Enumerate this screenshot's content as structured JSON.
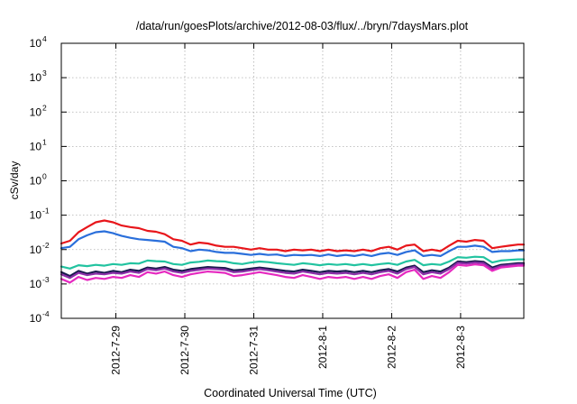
{
  "chart_data": {
    "type": "line",
    "title": "/data/run/goesPlots/archive/2012-08-03/flux/../bryn/7daysMars.plot",
    "xlabel": "Coordinated Universal Time (UTC)",
    "ylabel": "cSv/day",
    "xlim": [
      "2012-07-28T05:00",
      "2012-08-03T22:00"
    ],
    "ylim": [
      0.0001,
      10000
    ],
    "yscale": "log",
    "grid": true,
    "xticks": [
      {
        "label": "2012-7-29",
        "value": "2012-07-29T00:00"
      },
      {
        "label": "2012-7-30",
        "value": "2012-07-30T00:00"
      },
      {
        "label": "2012-7-31",
        "value": "2012-07-31T00:00"
      },
      {
        "label": "2012-8-1",
        "value": "2012-08-01T00:00"
      },
      {
        "label": "2012-8-2",
        "value": "2012-08-02T00:00"
      },
      {
        "label": "2012-8-3",
        "value": "2012-08-03T00:00"
      }
    ],
    "yticks": [
      {
        "value": 0.0001,
        "base": "10",
        "exp": "-4"
      },
      {
        "value": 0.001,
        "base": "10",
        "exp": "-3"
      },
      {
        "value": 0.01,
        "base": "10",
        "exp": "-2"
      },
      {
        "value": 0.1,
        "base": "10",
        "exp": "-1"
      },
      {
        "value": 1,
        "base": "10",
        "exp": "0"
      },
      {
        "value": 10,
        "base": "10",
        "exp": "1"
      },
      {
        "value": 100,
        "base": "10",
        "exp": "2"
      },
      {
        "value": 1000,
        "base": "10",
        "exp": "3"
      },
      {
        "value": 10000,
        "base": "10",
        "exp": "4"
      }
    ],
    "x": [
      "2012-07-28T05:00",
      "2012-07-28T08:00",
      "2012-07-28T11:00",
      "2012-07-28T14:00",
      "2012-07-28T17:00",
      "2012-07-28T20:00",
      "2012-07-28T23:00",
      "2012-07-29T02:00",
      "2012-07-29T05:00",
      "2012-07-29T08:00",
      "2012-07-29T11:00",
      "2012-07-29T14:00",
      "2012-07-29T17:00",
      "2012-07-29T20:00",
      "2012-07-29T23:00",
      "2012-07-30T02:00",
      "2012-07-30T05:00",
      "2012-07-30T08:00",
      "2012-07-30T11:00",
      "2012-07-30T14:00",
      "2012-07-30T17:00",
      "2012-07-30T20:00",
      "2012-07-30T23:00",
      "2012-07-31T02:00",
      "2012-07-31T05:00",
      "2012-07-31T08:00",
      "2012-07-31T11:00",
      "2012-07-31T14:00",
      "2012-07-31T17:00",
      "2012-07-31T20:00",
      "2012-07-31T23:00",
      "2012-08-01T02:00",
      "2012-08-01T05:00",
      "2012-08-01T08:00",
      "2012-08-01T11:00",
      "2012-08-01T14:00",
      "2012-08-01T17:00",
      "2012-08-01T20:00",
      "2012-08-01T23:00",
      "2012-08-02T02:00",
      "2012-08-02T05:00",
      "2012-08-02T08:00",
      "2012-08-02T11:00",
      "2012-08-02T14:00",
      "2012-08-02T17:00",
      "2012-08-02T20:00",
      "2012-08-02T23:00",
      "2012-08-03T02:00",
      "2012-08-03T05:00",
      "2012-08-03T08:00",
      "2012-08-03T11:00",
      "2012-08-03T14:00",
      "2012-08-03T17:00",
      "2012-08-03T20:00",
      "2012-08-03T22:00"
    ],
    "series": [
      {
        "color": "#e8161b",
        "values": [
          0.015,
          0.018,
          0.032,
          0.045,
          0.062,
          0.07,
          0.062,
          0.05,
          0.045,
          0.042,
          0.035,
          0.033,
          0.028,
          0.02,
          0.018,
          0.014,
          0.016,
          0.015,
          0.013,
          0.012,
          0.012,
          0.011,
          0.01,
          0.011,
          0.01,
          0.01,
          0.009,
          0.01,
          0.0095,
          0.01,
          0.009,
          0.01,
          0.009,
          0.0095,
          0.009,
          0.01,
          0.009,
          0.011,
          0.012,
          0.01,
          0.013,
          0.014,
          0.009,
          0.01,
          0.009,
          0.013,
          0.018,
          0.017,
          0.019,
          0.018,
          0.011,
          0.012,
          0.013,
          0.014,
          0.014
        ]
      },
      {
        "color": "#2a6fdb",
        "values": [
          0.011,
          0.012,
          0.02,
          0.026,
          0.032,
          0.034,
          0.03,
          0.025,
          0.022,
          0.02,
          0.019,
          0.018,
          0.017,
          0.012,
          0.011,
          0.009,
          0.01,
          0.0095,
          0.0085,
          0.008,
          0.008,
          0.0075,
          0.007,
          0.0075,
          0.007,
          0.0072,
          0.0065,
          0.007,
          0.0068,
          0.007,
          0.0065,
          0.0072,
          0.0065,
          0.007,
          0.0065,
          0.0072,
          0.0065,
          0.0075,
          0.008,
          0.007,
          0.0085,
          0.0095,
          0.0065,
          0.007,
          0.0065,
          0.009,
          0.012,
          0.012,
          0.013,
          0.012,
          0.0085,
          0.009,
          0.009,
          0.0095,
          0.0095
        ]
      },
      {
        "color": "#22c3a0",
        "values": [
          0.0032,
          0.0028,
          0.0035,
          0.0033,
          0.0036,
          0.0034,
          0.0038,
          0.0036,
          0.004,
          0.0039,
          0.0048,
          0.0046,
          0.0045,
          0.0038,
          0.0036,
          0.0042,
          0.0044,
          0.0048,
          0.0046,
          0.0045,
          0.004,
          0.0038,
          0.0042,
          0.0045,
          0.0043,
          0.004,
          0.0038,
          0.0036,
          0.004,
          0.0038,
          0.0035,
          0.0038,
          0.0036,
          0.0038,
          0.0035,
          0.0038,
          0.0035,
          0.0038,
          0.004,
          0.0036,
          0.0045,
          0.005,
          0.0035,
          0.0038,
          0.0036,
          0.0045,
          0.006,
          0.0058,
          0.0062,
          0.006,
          0.0042,
          0.0048,
          0.005,
          0.0052,
          0.0052
        ]
      },
      {
        "color": "#1a1a4e",
        "values": [
          0.0022,
          0.0017,
          0.0024,
          0.002,
          0.0023,
          0.0021,
          0.0024,
          0.0022,
          0.0026,
          0.0024,
          0.003,
          0.0028,
          0.0031,
          0.0026,
          0.0024,
          0.0027,
          0.0029,
          0.0031,
          0.003,
          0.0029,
          0.0025,
          0.0026,
          0.0028,
          0.003,
          0.0028,
          0.0026,
          0.0024,
          0.0023,
          0.0026,
          0.0024,
          0.0022,
          0.0024,
          0.0023,
          0.0024,
          0.0022,
          0.0024,
          0.0022,
          0.0025,
          0.0027,
          0.0023,
          0.003,
          0.0034,
          0.0022,
          0.0025,
          0.0023,
          0.003,
          0.0045,
          0.0043,
          0.0046,
          0.0044,
          0.003,
          0.0036,
          0.0038,
          0.004,
          0.004
        ]
      },
      {
        "color": "#8b2fa8",
        "values": [
          0.0019,
          0.0015,
          0.0021,
          0.0018,
          0.002,
          0.0019,
          0.0021,
          0.002,
          0.0023,
          0.0021,
          0.0027,
          0.0025,
          0.0028,
          0.0023,
          0.0021,
          0.0024,
          0.0026,
          0.0028,
          0.0027,
          0.0026,
          0.0022,
          0.0023,
          0.0025,
          0.0027,
          0.0025,
          0.0023,
          0.0021,
          0.002,
          0.0023,
          0.0021,
          0.0019,
          0.0021,
          0.002,
          0.0021,
          0.0019,
          0.0021,
          0.0019,
          0.0022,
          0.0024,
          0.002,
          0.0027,
          0.0031,
          0.0019,
          0.0022,
          0.002,
          0.0027,
          0.0041,
          0.0039,
          0.0042,
          0.004,
          0.0027,
          0.0033,
          0.0035,
          0.0037,
          0.0037
        ]
      },
      {
        "color": "#e629c0",
        "values": [
          0.0014,
          0.0011,
          0.0016,
          0.0013,
          0.0015,
          0.0014,
          0.0016,
          0.0015,
          0.0018,
          0.0016,
          0.0022,
          0.002,
          0.0023,
          0.0018,
          0.0016,
          0.0019,
          0.0021,
          0.0023,
          0.0022,
          0.0021,
          0.0017,
          0.0018,
          0.002,
          0.0022,
          0.002,
          0.0018,
          0.0016,
          0.0015,
          0.0018,
          0.0016,
          0.0014,
          0.0016,
          0.0015,
          0.0016,
          0.0014,
          0.0016,
          0.0014,
          0.0017,
          0.0019,
          0.0015,
          0.0022,
          0.0026,
          0.0014,
          0.0017,
          0.0015,
          0.0022,
          0.0036,
          0.0034,
          0.0037,
          0.0035,
          0.0024,
          0.003,
          0.0032,
          0.0034,
          0.0034
        ]
      }
    ]
  }
}
